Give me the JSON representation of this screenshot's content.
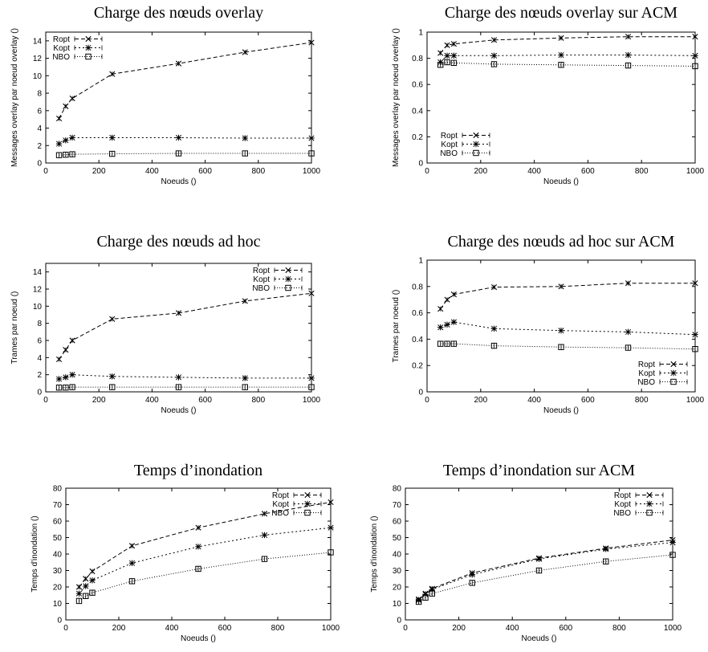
{
  "figure": {
    "x_unit_label": "Noeuds ()"
  },
  "chart_data": [
    {
      "type": "line",
      "title": "Charge des nœuds overlay",
      "xlabel": "Noeuds ()",
      "ylabel": "Messages overlay par noeud overlay ()",
      "xlim": [
        0,
        1000
      ],
      "ylim": [
        0,
        15
      ],
      "xticks": [
        0,
        200,
        400,
        600,
        800,
        1000
      ],
      "yticks": [
        0,
        2,
        4,
        6,
        8,
        10,
        12,
        14
      ],
      "legend": "top-left",
      "x": [
        50,
        75,
        100,
        250,
        500,
        750,
        1000
      ],
      "series": [
        {
          "name": "Ropt",
          "marker": "x",
          "dash": "5,3",
          "values": [
            5.1,
            6.5,
            7.4,
            10.2,
            11.4,
            12.7,
            13.8
          ]
        },
        {
          "name": "Kopt",
          "marker": "star",
          "dash": "2,3",
          "values": [
            2.2,
            2.6,
            2.9,
            2.9,
            2.9,
            2.85,
            2.85
          ]
        },
        {
          "name": "NBO",
          "marker": "square",
          "dash": "1,2",
          "values": [
            0.9,
            0.95,
            1.0,
            1.05,
            1.1,
            1.1,
            1.1
          ]
        }
      ]
    },
    {
      "type": "line",
      "title": "Charge des nœuds overlay sur ACM",
      "xlabel": "Noeuds ()",
      "ylabel": "Messages overlay par noeud overlay ()",
      "xlim": [
        0,
        1000
      ],
      "ylim": [
        0,
        1
      ],
      "xticks": [
        0,
        200,
        400,
        600,
        800,
        1000
      ],
      "yticks": [
        0,
        0.2,
        0.4,
        0.6,
        0.8,
        1
      ],
      "legend": "bottom-left",
      "x": [
        50,
        75,
        100,
        250,
        500,
        750,
        1000
      ],
      "series": [
        {
          "name": "Ropt",
          "marker": "x",
          "dash": "5,3",
          "values": [
            0.84,
            0.9,
            0.91,
            0.94,
            0.955,
            0.965,
            0.965
          ]
        },
        {
          "name": "Kopt",
          "marker": "star",
          "dash": "2,3",
          "values": [
            0.77,
            0.82,
            0.82,
            0.82,
            0.825,
            0.825,
            0.82
          ]
        },
        {
          "name": "NBO",
          "marker": "square",
          "dash": "1,2",
          "values": [
            0.75,
            0.77,
            0.765,
            0.755,
            0.75,
            0.745,
            0.74
          ]
        }
      ]
    },
    {
      "type": "line",
      "title": "Charge des nœuds ad hoc",
      "xlabel": "Noeuds ()",
      "ylabel": "Trames par noeud ()",
      "xlim": [
        0,
        1000
      ],
      "ylim": [
        0,
        15
      ],
      "xticks": [
        0,
        200,
        400,
        600,
        800,
        1000
      ],
      "yticks": [
        0,
        2,
        4,
        6,
        8,
        10,
        12,
        14
      ],
      "legend": "top-right",
      "x": [
        50,
        75,
        100,
        250,
        500,
        750,
        1000
      ],
      "series": [
        {
          "name": "Ropt",
          "marker": "x",
          "dash": "5,3",
          "values": [
            3.8,
            4.9,
            6.0,
            8.5,
            9.2,
            10.6,
            11.5
          ]
        },
        {
          "name": "Kopt",
          "marker": "star",
          "dash": "2,3",
          "values": [
            1.5,
            1.7,
            2.0,
            1.8,
            1.7,
            1.6,
            1.6
          ]
        },
        {
          "name": "NBO",
          "marker": "square",
          "dash": "1,2",
          "values": [
            0.5,
            0.5,
            0.55,
            0.55,
            0.55,
            0.55,
            0.55
          ]
        }
      ]
    },
    {
      "type": "line",
      "title": "Charge des nœuds ad hoc sur ACM",
      "xlabel": "Noeuds ()",
      "ylabel": "Trames par noeud ()",
      "xlim": [
        0,
        1000
      ],
      "ylim": [
        0,
        1
      ],
      "xticks": [
        0,
        200,
        400,
        600,
        800,
        1000
      ],
      "yticks": [
        0,
        0.2,
        0.4,
        0.6,
        0.8,
        1
      ],
      "legend": "bottom-right",
      "x": [
        50,
        75,
        100,
        250,
        500,
        750,
        1000
      ],
      "series": [
        {
          "name": "Ropt",
          "marker": "x",
          "dash": "5,3",
          "values": [
            0.63,
            0.7,
            0.74,
            0.795,
            0.8,
            0.825,
            0.825
          ]
        },
        {
          "name": "Kopt",
          "marker": "star",
          "dash": "2,3",
          "values": [
            0.49,
            0.51,
            0.53,
            0.48,
            0.465,
            0.455,
            0.435
          ]
        },
        {
          "name": "NBO",
          "marker": "square",
          "dash": "1,2",
          "values": [
            0.365,
            0.365,
            0.365,
            0.35,
            0.34,
            0.335,
            0.325
          ]
        }
      ]
    },
    {
      "type": "line",
      "title": "Temps d’inondation",
      "xlabel": "Noeuds ()",
      "ylabel": "Temps d'inondation ()",
      "xlim": [
        0,
        1000
      ],
      "ylim": [
        0,
        80
      ],
      "xticks": [
        0,
        200,
        400,
        600,
        800,
        1000
      ],
      "yticks": [
        0,
        10,
        20,
        30,
        40,
        50,
        60,
        70,
        80
      ],
      "legend": "top-right",
      "x": [
        50,
        75,
        100,
        250,
        500,
        750,
        1000
      ],
      "series": [
        {
          "name": "Ropt",
          "marker": "x",
          "dash": "5,3",
          "values": [
            20,
            25,
            29.5,
            45,
            56,
            64.5,
            71.5
          ]
        },
        {
          "name": "Kopt",
          "marker": "star",
          "dash": "2,3",
          "values": [
            16,
            20.5,
            24,
            34.5,
            44.5,
            51.5,
            56
          ]
        },
        {
          "name": "NBO",
          "marker": "square",
          "dash": "1,2",
          "values": [
            11.5,
            14.5,
            16.5,
            23.5,
            31,
            37,
            41
          ]
        }
      ]
    },
    {
      "type": "line",
      "title": "Temps d’inondation sur ACM",
      "xlabel": "Noeuds ()",
      "ylabel": "Temps d'inondation ()",
      "xlim": [
        0,
        1000
      ],
      "ylim": [
        0,
        80
      ],
      "xticks": [
        0,
        200,
        400,
        600,
        800,
        1000
      ],
      "yticks": [
        0,
        10,
        20,
        30,
        40,
        50,
        60,
        70,
        80
      ],
      "legend": "top-right",
      "x": [
        50,
        75,
        100,
        250,
        500,
        750,
        1000
      ],
      "series": [
        {
          "name": "Ropt",
          "marker": "x",
          "dash": "5,3",
          "values": [
            12.5,
            16,
            19,
            28.5,
            37.5,
            43.5,
            48.5
          ]
        },
        {
          "name": "Kopt",
          "marker": "star",
          "dash": "2,3",
          "values": [
            12,
            15.5,
            18.5,
            27.5,
            37,
            43,
            47
          ]
        },
        {
          "name": "NBO",
          "marker": "square",
          "dash": "1,2",
          "values": [
            11,
            13.5,
            16,
            22.5,
            30,
            35.5,
            39.5
          ]
        }
      ]
    }
  ]
}
